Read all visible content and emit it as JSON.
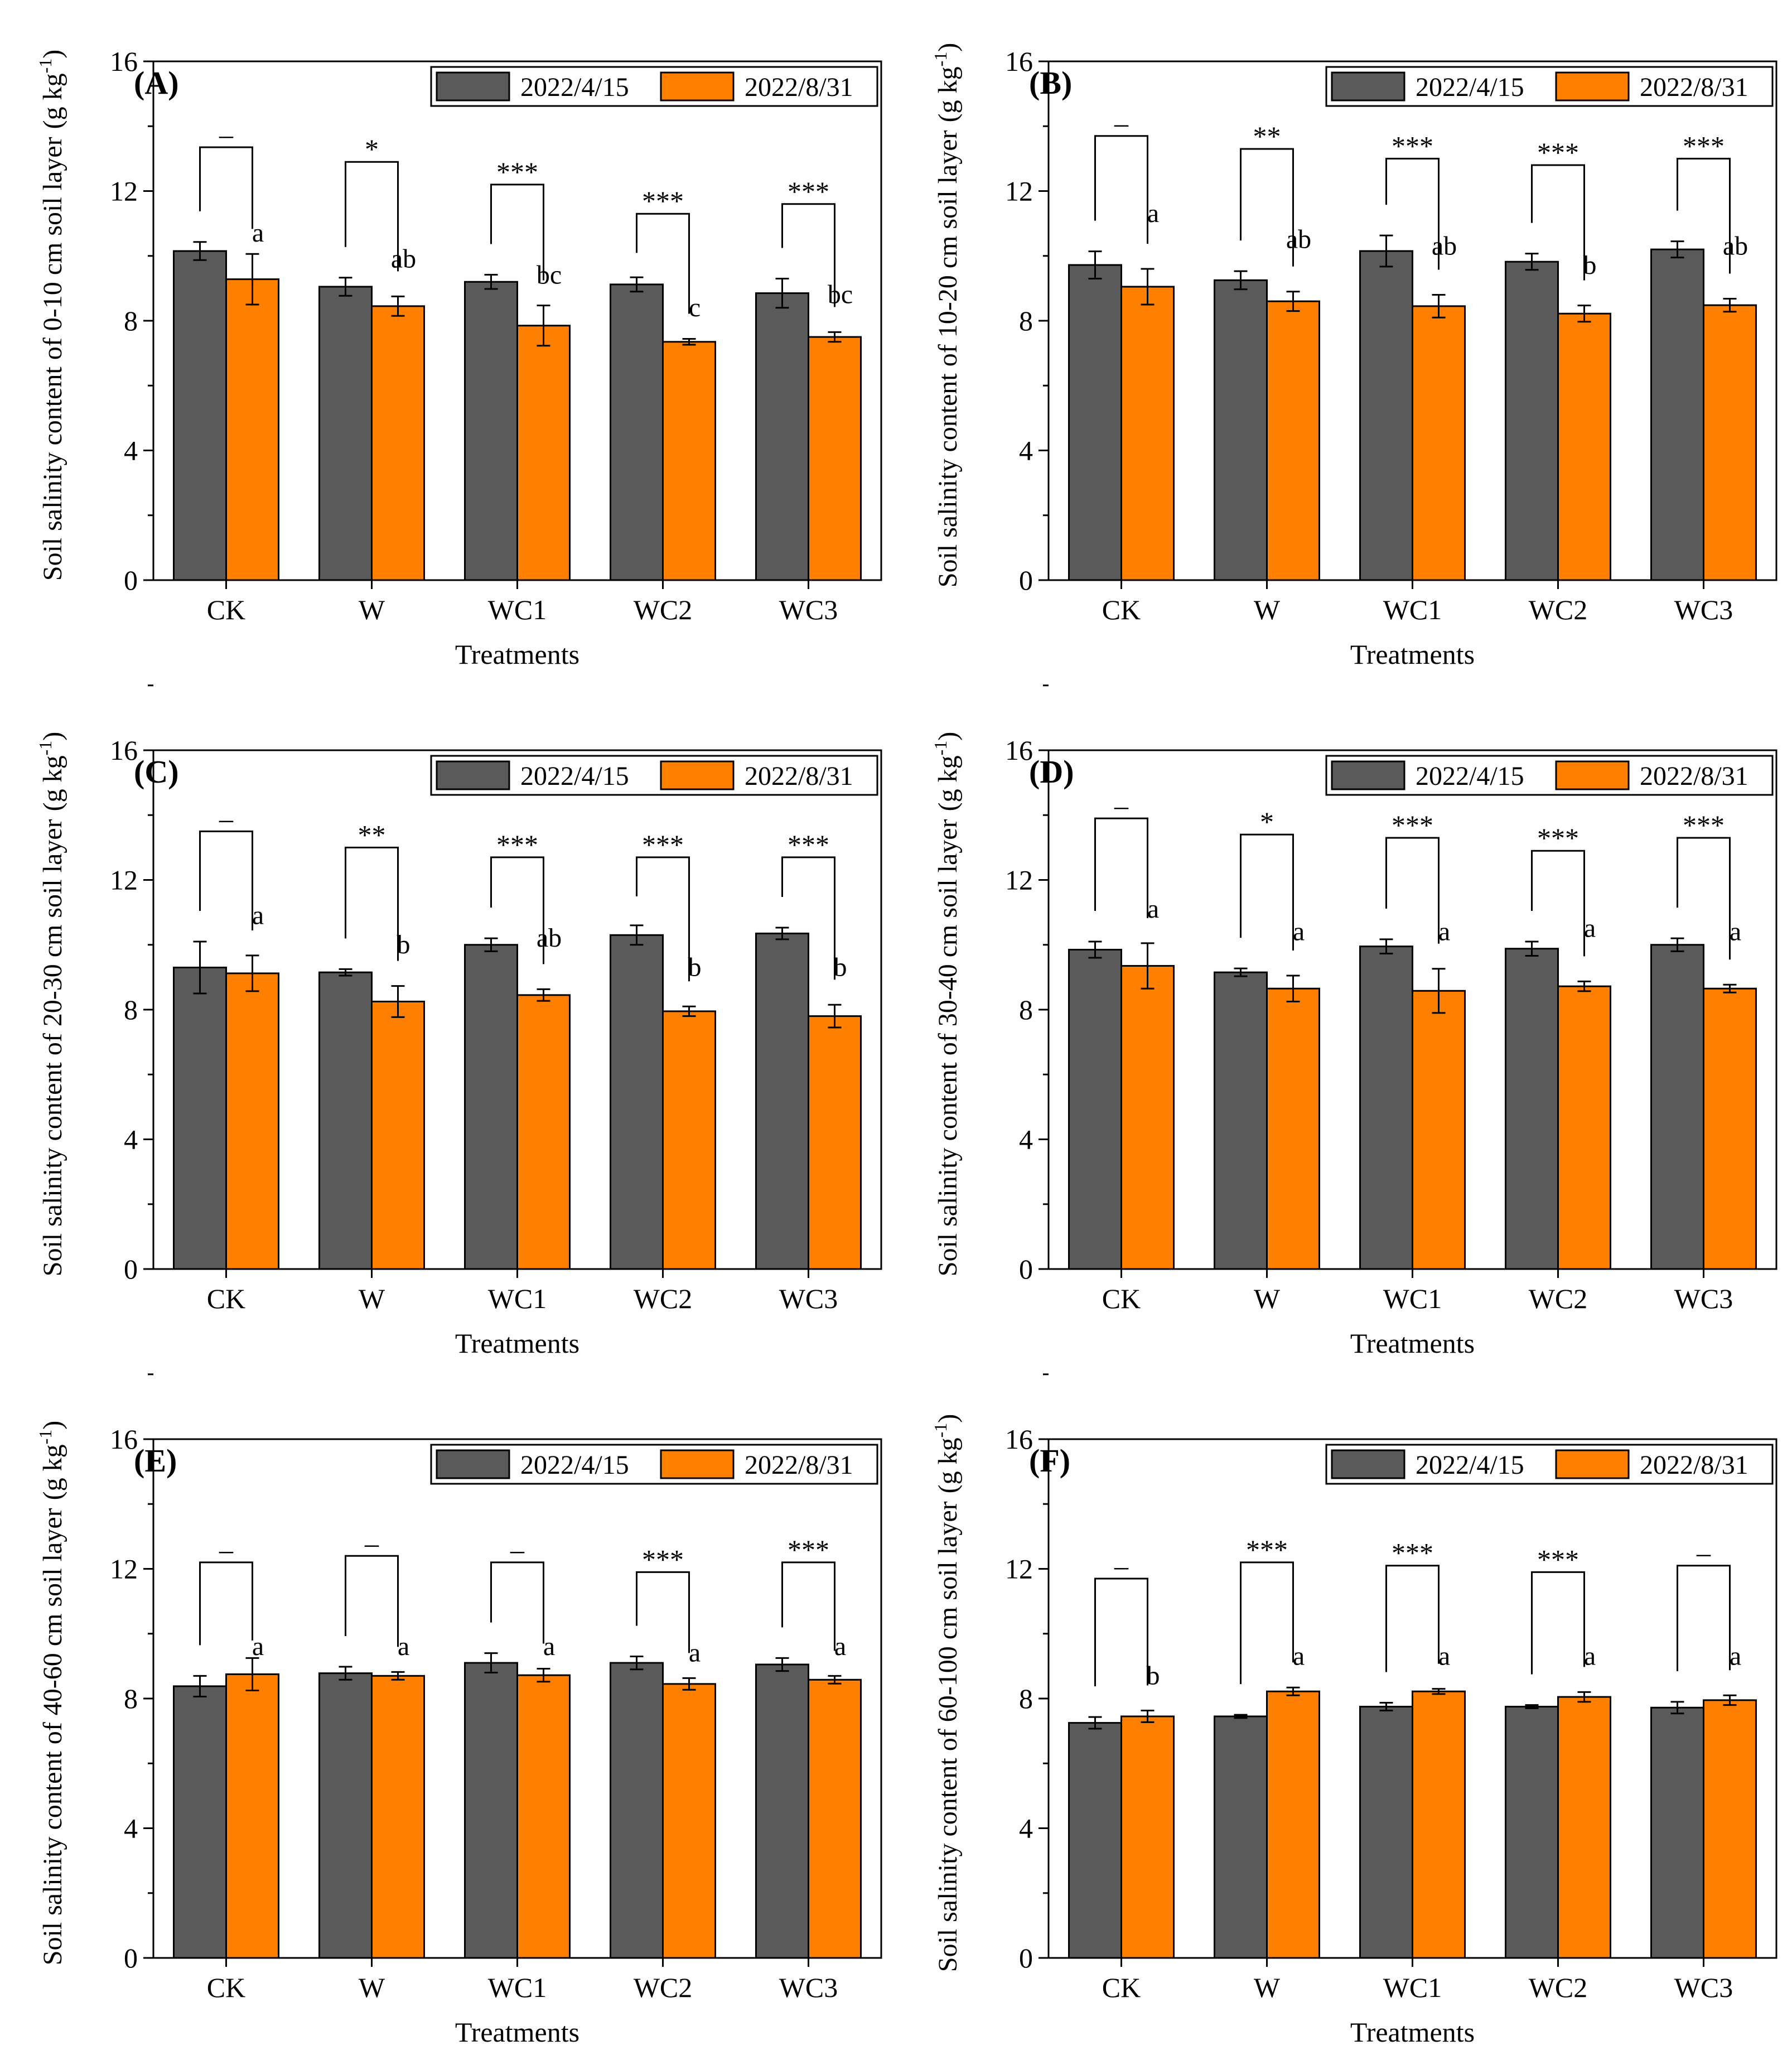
{
  "figure": {
    "categories": [
      "CK",
      "W",
      "WC1",
      "WC2",
      "WC3"
    ],
    "xlabel": "Treatments",
    "legend": [
      "2022/4/15",
      "2022/8/31"
    ],
    "colors": {
      "series1": "#5a5a5a",
      "series2": "#ff7f00",
      "axis": "#000000"
    }
  },
  "chart_data": [
    {
      "type": "bar",
      "panel_label": "(A)",
      "ylabel_text": "Soil salinity content of 0-10 cm soil layer",
      "ylabel_unit": "(g kg",
      "ylabel_sup": "-1",
      "ylabel_close": ")",
      "ylim": [
        0,
        16
      ],
      "yticks": [
        "0",
        "4",
        "8",
        "12",
        "16"
      ],
      "categories": [
        "CK",
        "W",
        "WC1",
        "WC2",
        "WC3"
      ],
      "xlabel": "Treatments",
      "legend_position": "top-right",
      "series": [
        {
          "name": "2022/4/15",
          "values": [
            10.15,
            9.05,
            9.2,
            9.12,
            8.85
          ],
          "errors": [
            0.28,
            0.28,
            0.22,
            0.22,
            0.45
          ]
        },
        {
          "name": "2022/8/31",
          "values": [
            9.28,
            8.45,
            7.85,
            7.35,
            7.5
          ],
          "errors": [
            0.78,
            0.3,
            0.62,
            0.09,
            0.15
          ]
        }
      ],
      "sig_marks": [
        "–",
        "*",
        "***",
        "***",
        "***"
      ],
      "bracket_tops": [
        13.35,
        12.9,
        12.2,
        11.3,
        11.6
      ],
      "letters": [
        "a",
        "ab",
        "bc",
        "c",
        "bc"
      ],
      "letter_y": [
        10.7,
        9.9,
        9.4,
        8.4,
        8.8
      ]
    },
    {
      "type": "bar",
      "panel_label": "(B)",
      "ylabel_text": "Soil salinity content of 10-20 cm soil layer",
      "ylabel_unit": "(g kg",
      "ylabel_sup": "-1",
      "ylabel_close": ")",
      "ylim": [
        0,
        16
      ],
      "yticks": [
        "0",
        "4",
        "8",
        "12",
        "16"
      ],
      "categories": [
        "CK",
        "W",
        "WC1",
        "WC2",
        "WC3"
      ],
      "xlabel": "Treatments",
      "legend_position": "top-right",
      "series": [
        {
          "name": "2022/4/15",
          "values": [
            9.72,
            9.25,
            10.15,
            9.82,
            10.2
          ],
          "errors": [
            0.42,
            0.28,
            0.48,
            0.25,
            0.25
          ]
        },
        {
          "name": "2022/8/31",
          "values": [
            9.05,
            8.6,
            8.45,
            8.22,
            8.48
          ],
          "errors": [
            0.55,
            0.3,
            0.35,
            0.25,
            0.2
          ]
        }
      ],
      "sig_marks": [
        "–",
        "**",
        "***",
        "***",
        "***"
      ],
      "bracket_tops": [
        13.7,
        13.3,
        13.0,
        12.8,
        13.0
      ],
      "letters": [
        "a",
        "ab",
        "ab",
        "b",
        "ab"
      ],
      "letter_y": [
        11.3,
        10.5,
        10.3,
        9.7,
        10.3
      ]
    },
    {
      "type": "bar",
      "panel_label": "(C)",
      "ylabel_text": "Soil salinity content of 20-30 cm soil layer",
      "ylabel_unit": "(g kg",
      "ylabel_sup": "-1",
      "ylabel_close": ")",
      "ylim": [
        0,
        16
      ],
      "yticks": [
        "0",
        "4",
        "8",
        "12",
        "16"
      ],
      "categories": [
        "CK",
        "W",
        "WC1",
        "WC2",
        "WC3"
      ],
      "xlabel": "Treatments",
      "legend_position": "top-right",
      "series": [
        {
          "name": "2022/4/15",
          "values": [
            9.3,
            9.15,
            10.0,
            10.3,
            10.35
          ],
          "errors": [
            0.8,
            0.1,
            0.2,
            0.3,
            0.18
          ]
        },
        {
          "name": "2022/8/31",
          "values": [
            9.12,
            8.25,
            8.45,
            7.95,
            7.8
          ],
          "errors": [
            0.55,
            0.48,
            0.18,
            0.15,
            0.35
          ]
        }
      ],
      "sig_marks": [
        "–",
        "**",
        "***",
        "***",
        "***"
      ],
      "bracket_tops": [
        13.5,
        13.0,
        12.7,
        12.7,
        12.7
      ],
      "letters": [
        "a",
        "b",
        "ab",
        "b",
        "b"
      ],
      "letter_y": [
        10.9,
        10.0,
        10.2,
        9.3,
        9.3
      ]
    },
    {
      "type": "bar",
      "panel_label": "(D)",
      "ylabel_text": "Soil salinity content of 30-40 cm soil layer",
      "ylabel_unit": "(g kg",
      "ylabel_sup": "-1",
      "ylabel_close": ")",
      "ylim": [
        0,
        16
      ],
      "yticks": [
        "0",
        "4",
        "8",
        "12",
        "16"
      ],
      "categories": [
        "CK",
        "W",
        "WC1",
        "WC2",
        "WC3"
      ],
      "xlabel": "Treatments",
      "legend_position": "top-right",
      "series": [
        {
          "name": "2022/4/15",
          "values": [
            9.85,
            9.15,
            9.95,
            9.88,
            10.0
          ],
          "errors": [
            0.25,
            0.12,
            0.22,
            0.22,
            0.2
          ]
        },
        {
          "name": "2022/8/31",
          "values": [
            9.35,
            8.65,
            8.58,
            8.72,
            8.65
          ],
          "errors": [
            0.7,
            0.4,
            0.68,
            0.15,
            0.12
          ]
        }
      ],
      "sig_marks": [
        "–",
        "*",
        "***",
        "***",
        "***"
      ],
      "bracket_tops": [
        13.9,
        13.4,
        13.3,
        12.9,
        13.3
      ],
      "letters": [
        "a",
        "a",
        "a",
        "a",
        "a"
      ],
      "letter_y": [
        11.1,
        10.4,
        10.4,
        10.5,
        10.4
      ]
    },
    {
      "type": "bar",
      "panel_label": "(E)",
      "ylabel_text": "Soil salinity content of 40-60 cm soil layer",
      "ylabel_unit": "(g kg",
      "ylabel_sup": "-1",
      "ylabel_close": ")",
      "ylim": [
        0,
        16
      ],
      "yticks": [
        "0",
        "4",
        "8",
        "12",
        "16"
      ],
      "categories": [
        "CK",
        "W",
        "WC1",
        "WC2",
        "WC3"
      ],
      "xlabel": "Treatments",
      "legend_position": "top-right",
      "series": [
        {
          "name": "2022/4/15",
          "values": [
            8.38,
            8.78,
            9.1,
            9.1,
            9.05
          ],
          "errors": [
            0.32,
            0.2,
            0.3,
            0.2,
            0.2
          ]
        },
        {
          "name": "2022/8/31",
          "values": [
            8.75,
            8.7,
            8.72,
            8.45,
            8.58
          ],
          "errors": [
            0.5,
            0.12,
            0.2,
            0.18,
            0.12
          ]
        }
      ],
      "sig_marks": [
        "–",
        "–",
        "–",
        "***",
        "***"
      ],
      "bracket_tops": [
        12.2,
        12.4,
        12.2,
        11.9,
        12.2
      ],
      "letters": [
        "a",
        "a",
        "a",
        "a",
        "a"
      ],
      "letter_y": [
        9.6,
        9.6,
        9.6,
        9.4,
        9.6
      ]
    },
    {
      "type": "bar",
      "panel_label": "(F)",
      "ylabel_text": "Soil salinity content of 60-100 cm soil layer",
      "ylabel_unit": "(g kg",
      "ylabel_sup": "-1",
      "ylabel_close": ")",
      "ylim": [
        0,
        16
      ],
      "yticks": [
        "0",
        "4",
        "8",
        "12",
        "16"
      ],
      "categories": [
        "CK",
        "W",
        "WC1",
        "WC2",
        "WC3"
      ],
      "xlabel": "Treatments",
      "legend_position": "top-right",
      "series": [
        {
          "name": "2022/4/15",
          "values": [
            7.25,
            7.45,
            7.75,
            7.75,
            7.72
          ],
          "errors": [
            0.18,
            0.05,
            0.12,
            0.05,
            0.18
          ]
        },
        {
          "name": "2022/8/31",
          "values": [
            7.45,
            8.22,
            8.22,
            8.05,
            7.95
          ],
          "errors": [
            0.18,
            0.12,
            0.08,
            0.15,
            0.15
          ]
        }
      ],
      "sig_marks": [
        "–",
        "***",
        "***",
        "***",
        "–"
      ],
      "bracket_tops": [
        11.7,
        12.2,
        12.1,
        11.9,
        12.1
      ],
      "letters": [
        "b",
        "a",
        "a",
        "a",
        "a"
      ],
      "letter_y": [
        8.7,
        9.3,
        9.3,
        9.3,
        9.3
      ]
    }
  ]
}
